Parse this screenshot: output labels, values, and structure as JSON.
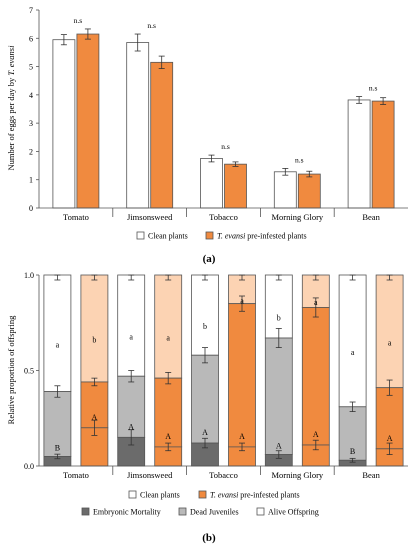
{
  "colors": {
    "clean": "#ffffff",
    "infested": "#f08a3f",
    "embryonic": "#6b6b6b",
    "dead_clean": "#b9b9b9",
    "alive_clean": "#ffffff",
    "dead_infested": "#f08a3f",
    "alive_infested": "#fcd3b3",
    "axis": "#555555",
    "outline": "#555555"
  },
  "chart_data": [
    {
      "type": "bar",
      "panel_label": "(a)",
      "categories": [
        "Tomato",
        "Jimsonsweed",
        "Tobacco",
        "Morning Glory",
        "Bean"
      ],
      "ylabel_prefix": "Number of eggs per day by ",
      "ylabel_species": "T. evansi",
      "ylim": [
        0,
        7
      ],
      "yticks": [
        "0",
        "1",
        "2",
        "3",
        "4",
        "5",
        "6",
        "7"
      ],
      "series": [
        {
          "name": "Clean plants",
          "values": [
            5.95,
            5.85,
            1.75,
            1.28,
            3.82
          ],
          "errors": [
            0.18,
            0.3,
            0.12,
            0.12,
            0.12
          ]
        },
        {
          "name": "T. evansi pre-infested plants",
          "values": [
            6.15,
            5.15,
            1.55,
            1.2,
            3.78
          ],
          "errors": [
            0.18,
            0.22,
            0.08,
            0.1,
            0.12
          ]
        }
      ],
      "annotations": [
        "n.s",
        "n.s",
        "n.s",
        "n.s",
        "n.s"
      ],
      "legend": {
        "clean": "Clean plants",
        "infested_species": "T. evansi",
        "infested_rest": " pre-infested plants",
        "placement": "bottom"
      }
    },
    {
      "type": "stacked-bar",
      "panel_label": "(b)",
      "categories": [
        "Tomato",
        "Jimsonsweed",
        "Tobacco",
        "Morning Glory",
        "Bean"
      ],
      "ylabel": "Relative proportion of offspring",
      "ylim": [
        0,
        1
      ],
      "yticks": [
        "0.0",
        "0.5",
        "1.0"
      ],
      "clean": {
        "embryonic": [
          0.05,
          0.15,
          0.12,
          0.06,
          0.03
        ],
        "dead_juveniles": [
          0.34,
          0.32,
          0.46,
          0.61,
          0.28
        ],
        "cum_err": [
          0.03,
          0.03,
          0.04,
          0.05,
          0.025
        ],
        "emb_err": [
          0.012,
          0.04,
          0.025,
          0.02,
          0.01
        ],
        "letter_embryonic": [
          "B",
          "A",
          "A",
          "A",
          "B"
        ],
        "letter_dead": [
          "a",
          "a",
          "b",
          "b",
          "a"
        ]
      },
      "infested": {
        "embryonic": [
          0.2,
          0.1,
          0.1,
          0.11,
          0.09
        ],
        "dead_juveniles": [
          0.24,
          0.36,
          0.75,
          0.72,
          0.32
        ],
        "cum_err": [
          0.02,
          0.03,
          0.04,
          0.05,
          0.04
        ],
        "emb_err": [
          0.04,
          0.02,
          0.02,
          0.025,
          0.03
        ],
        "letter_embryonic": [
          "A",
          "A",
          "A",
          "A",
          "A"
        ],
        "letter_dead": [
          "b",
          "a",
          "a",
          "a",
          "a"
        ]
      },
      "legend1": {
        "clean": "Clean plants",
        "infested_species": "T. evansi",
        "infested_rest": " pre-infested plants"
      },
      "legend2": [
        "Embryonic Mortality",
        "Dead Juveniles",
        "Alive Offspring"
      ]
    }
  ]
}
